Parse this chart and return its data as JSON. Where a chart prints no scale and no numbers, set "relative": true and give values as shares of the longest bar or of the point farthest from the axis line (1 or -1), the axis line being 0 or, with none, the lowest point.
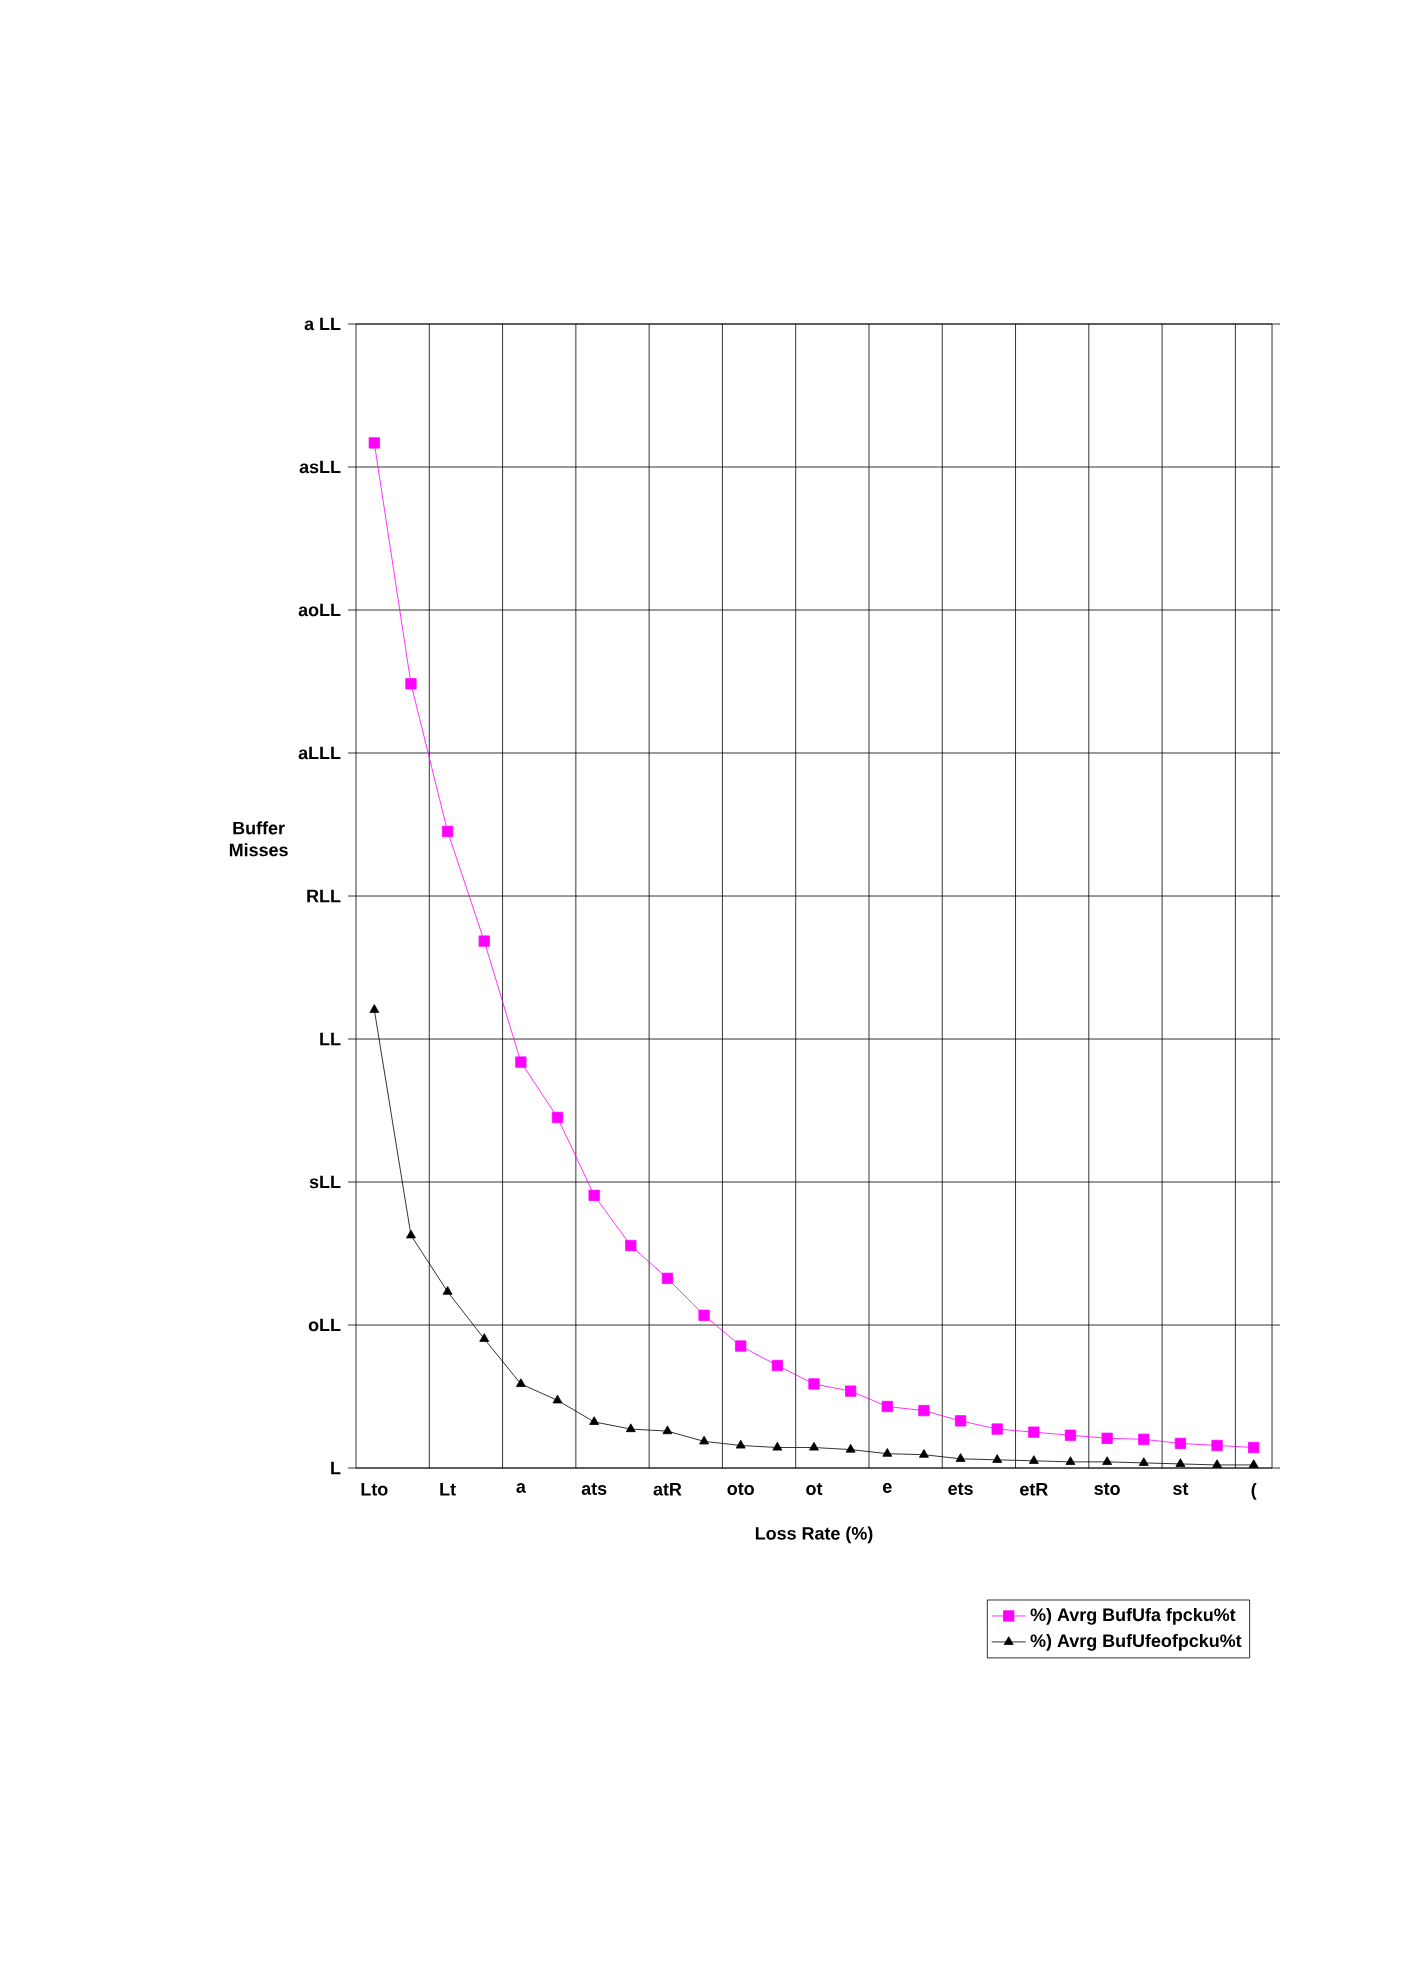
{
  "chart_data": {
    "type": "line",
    "xlabel": "Loss Rate (%)",
    "ylabel": "Buffer Misses",
    "relative": true,
    "categories": [
      "Lto",
      null,
      "Lt",
      null,
      "a",
      null,
      "ats",
      null,
      "atR",
      null,
      "oto",
      null,
      "ot",
      null,
      "e",
      null,
      "ets",
      null,
      "etR",
      null,
      "sto",
      null,
      "st",
      null,
      "("
    ],
    "series": [
      {
        "name": "%) Avrg BufUfa fpcku%t",
        "color": "#ff00ff",
        "marker": "square",
        "values": [
          1,
          0.765,
          0.621,
          0.514,
          0.396,
          0.342,
          0.266,
          0.217,
          0.185,
          0.149,
          0.119,
          0.1,
          0.082,
          0.075,
          0.06,
          0.056,
          0.046,
          0.038,
          0.035,
          0.032,
          0.029,
          0.028,
          0.024,
          0.022,
          0.02
        ]
      },
      {
        "name": "%) Avrg BufUfeofpcku%t",
        "color": "#000000",
        "marker": "triangle",
        "values": [
          0.447,
          0.227,
          0.172,
          0.126,
          0.082,
          0.066,
          0.045,
          0.038,
          0.036,
          0.026,
          0.022,
          0.02,
          0.02,
          0.018,
          0.014,
          0.013,
          0.009,
          0.008,
          0.007,
          0.006,
          0.006,
          0.005,
          0.004,
          0.003,
          0.003
        ]
      }
    ],
    "annotations": [
      "L",
      "oLL",
      "sLL",
      "LL",
      "RLL",
      "aLLL",
      "aoLL",
      "asLL",
      "a LL"
    ],
    "grid": true,
    "legend": "bottom right",
    "line_style": "solid"
  }
}
